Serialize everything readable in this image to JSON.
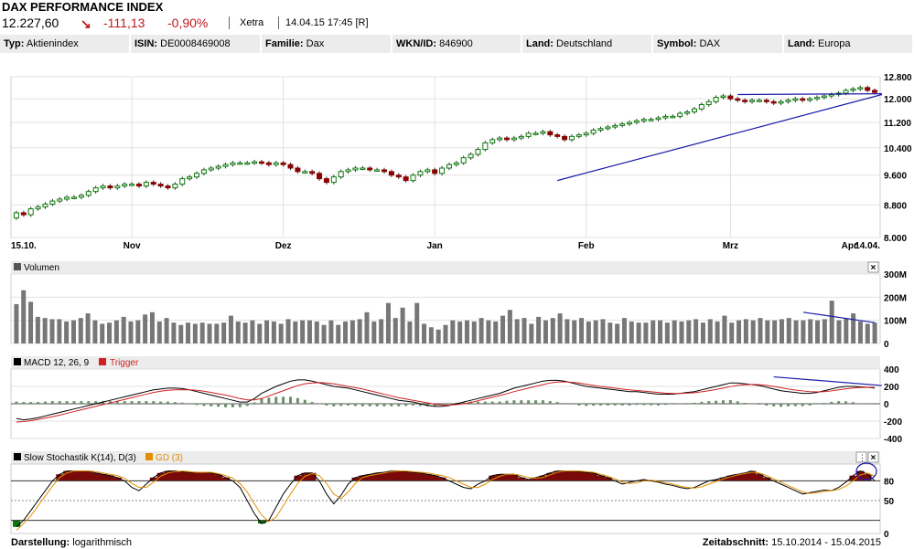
{
  "header": {
    "title": "DAX PERFORMANCE INDEX",
    "price": "12.227,60",
    "change": "-111,13",
    "change_pct": "-0,90%",
    "exchange": "Xetra",
    "timestamp": "14.04.15 17:45 [R]",
    "down_color": "#c0171a"
  },
  "info": [
    {
      "label": "Typ:",
      "value": "Aktienindex"
    },
    {
      "label": "ISIN:",
      "value": "DE0008469008"
    },
    {
      "label": "Familie:",
      "value": "Dax"
    },
    {
      "label": "WKN/ID:",
      "value": "846900"
    },
    {
      "label": "Land:",
      "value": "Deutschland"
    },
    {
      "label": "Symbol:",
      "value": "DAX"
    },
    {
      "label": "Land:",
      "value": "Europa"
    }
  ],
  "footer": {
    "left_label": "Darstellung:",
    "left_value": "logarithmisch",
    "right_label": "Zeitabschnitt:",
    "right_value": "15.10.2014 - 15.04.2015"
  },
  "chart_data": [
    {
      "type": "candlestick",
      "x_tick_labels": [
        "15.10.",
        "Nov",
        "Dez",
        "Jan",
        "Feb",
        "Mrz",
        "Apr",
        "14.04."
      ],
      "y_tick_labels": [
        "12.800",
        "12.000",
        "11.200",
        "10.400",
        "9.600",
        "8.800",
        "8.000"
      ],
      "y_ticks": [
        12800,
        12000,
        11200,
        10400,
        9600,
        8800,
        8000
      ],
      "ylim": [
        8000,
        12800
      ],
      "scale": "log",
      "grid": true,
      "up_color": "#0a7a0a",
      "down_color": "#8b0000",
      "close": [
        8600,
        8550,
        8700,
        8750,
        8820,
        8900,
        8950,
        9000,
        9000,
        9050,
        9150,
        9250,
        9300,
        9250,
        9300,
        9350,
        9350,
        9300,
        9400,
        9350,
        9300,
        9250,
        9350,
        9500,
        9550,
        9650,
        9750,
        9800,
        9850,
        9900,
        9950,
        9950,
        9950,
        9980,
        9950,
        9900,
        9950,
        9900,
        9800,
        9700,
        9700,
        9650,
        9500,
        9400,
        9550,
        9700,
        9750,
        9800,
        9800,
        9750,
        9750,
        9700,
        9600,
        9550,
        9450,
        9600,
        9700,
        9750,
        9650,
        9800,
        9900,
        9950,
        10100,
        10200,
        10350,
        10550,
        10650,
        10700,
        10650,
        10700,
        10750,
        10850,
        10850,
        10900,
        10800,
        10750,
        10650,
        10750,
        10800,
        10850,
        10950,
        11000,
        11050,
        11100,
        11150,
        11200,
        11250,
        11300,
        11300,
        11350,
        11400,
        11400,
        11500,
        11550,
        11650,
        11800,
        11900,
        12050,
        12100,
        12000,
        11950,
        11900,
        11950,
        11950,
        11900,
        11850,
        11900,
        11950,
        12000,
        11950,
        12000,
        12050,
        12100,
        12150,
        12200,
        12300,
        12350,
        12400,
        12300,
        12227
      ],
      "trendlines": [
        {
          "from": [
            75,
            9450
          ],
          "to": [
            120,
            12150
          ]
        },
        {
          "from": [
            100,
            12150
          ],
          "to": [
            120,
            12180
          ]
        }
      ]
    },
    {
      "type": "bar",
      "title": "Volumen",
      "y_tick_labels": [
        "300M",
        "200M",
        "100M",
        "0"
      ],
      "y_ticks": [
        300,
        200,
        100,
        0
      ],
      "ylim": [
        0,
        300
      ],
      "units": "M",
      "values": [
        170,
        230,
        180,
        115,
        110,
        105,
        105,
        95,
        100,
        110,
        130,
        100,
        85,
        90,
        100,
        115,
        95,
        100,
        125,
        135,
        95,
        110,
        90,
        80,
        90,
        85,
        90,
        85,
        85,
        90,
        120,
        95,
        90,
        100,
        85,
        100,
        95,
        85,
        105,
        95,
        100,
        100,
        95,
        80,
        100,
        80,
        95,
        100,
        105,
        135,
        95,
        105,
        175,
        110,
        155,
        95,
        175,
        85,
        70,
        60,
        80,
        100,
        95,
        100,
        95,
        110,
        100,
        95,
        120,
        145,
        105,
        110,
        85,
        115,
        100,
        110,
        130,
        105,
        100,
        110,
        95,
        100,
        105,
        90,
        85,
        110,
        95,
        90,
        90,
        100,
        100,
        90,
        100,
        95,
        100,
        105,
        90,
        105,
        95,
        120,
        90,
        100,
        105,
        100,
        110,
        100,
        100,
        105,
        110,
        100,
        100,
        105,
        100,
        105,
        185,
        100,
        110,
        130,
        95,
        85,
        90
      ],
      "trendline": {
        "from": [
          110,
          135
        ],
        "to": [
          120,
          90
        ]
      }
    },
    {
      "type": "line",
      "title": "MACD 12, 26, 9",
      "legend": [
        "MACD 12, 26, 9",
        "Trigger"
      ],
      "y_tick_labels": [
        "400",
        "200",
        "0",
        "-200",
        "-400"
      ],
      "y_ticks": [
        400,
        200,
        0,
        -200,
        -400
      ],
      "ylim": [
        -400,
        400
      ],
      "series": [
        {
          "name": "MACD 12, 26, 9",
          "color": "#000000",
          "values": [
            -170,
            -185,
            -175,
            -160,
            -140,
            -120,
            -100,
            -80,
            -60,
            -40,
            -20,
            0,
            20,
            40,
            60,
            80,
            100,
            120,
            140,
            160,
            170,
            180,
            180,
            175,
            160,
            140,
            120,
            100,
            80,
            60,
            40,
            20,
            20,
            60,
            120,
            160,
            200,
            230,
            260,
            275,
            275,
            260,
            240,
            220,
            200,
            190,
            180,
            160,
            140,
            120,
            100,
            80,
            60,
            40,
            30,
            20,
            0,
            -20,
            -30,
            -30,
            -20,
            0,
            20,
            40,
            60,
            80,
            100,
            120,
            150,
            180,
            200,
            220,
            240,
            260,
            270,
            270,
            260,
            240,
            220,
            200,
            190,
            180,
            170,
            160,
            150,
            140,
            140,
            130,
            120,
            110,
            110,
            110,
            120,
            130,
            140,
            160,
            180,
            200,
            220,
            240,
            240,
            230,
            220,
            210,
            190,
            170,
            150,
            140,
            130,
            120,
            120,
            130,
            150,
            170,
            190,
            200,
            200,
            195,
            190,
            180
          ]
        },
        {
          "name": "Trigger",
          "color": "#d02020",
          "values": [
            -210,
            -205,
            -195,
            -180,
            -165,
            -150,
            -130,
            -110,
            -90,
            -70,
            -50,
            -30,
            -10,
            10,
            30,
            50,
            70,
            90,
            110,
            130,
            145,
            155,
            160,
            162,
            160,
            155,
            145,
            130,
            115,
            100,
            80,
            60,
            45,
            45,
            60,
            90,
            120,
            150,
            180,
            210,
            230,
            240,
            245,
            240,
            230,
            215,
            200,
            185,
            170,
            150,
            130,
            110,
            90,
            70,
            55,
            40,
            25,
            10,
            -5,
            -15,
            -15,
            -10,
            0,
            15,
            35,
            55,
            75,
            95,
            115,
            140,
            160,
            180,
            200,
            220,
            240,
            250,
            252,
            248,
            240,
            225,
            212,
            200,
            190,
            180,
            170,
            160,
            153,
            146,
            138,
            130,
            123,
            118,
            118,
            122,
            128,
            138,
            150,
            165,
            180,
            198,
            212,
            220,
            222,
            220,
            212,
            200,
            185,
            170,
            158,
            148,
            140,
            137,
            140,
            148,
            160,
            172,
            182,
            188,
            190,
            188
          ]
        }
      ],
      "histogram": [
        25,
        20,
        20,
        20,
        25,
        30,
        30,
        30,
        30,
        30,
        30,
        30,
        30,
        30,
        30,
        30,
        30,
        30,
        30,
        30,
        25,
        25,
        20,
        13,
        0,
        -15,
        -25,
        -30,
        -35,
        -40,
        -40,
        -40,
        -25,
        15,
        60,
        70,
        80,
        80,
        80,
        65,
        45,
        20,
        -5,
        -20,
        -30,
        -25,
        -20,
        -25,
        -30,
        -30,
        -30,
        -30,
        -30,
        -30,
        -25,
        -20,
        -25,
        -30,
        -25,
        -15,
        -5,
        10,
        20,
        25,
        25,
        25,
        25,
        25,
        35,
        40,
        40,
        40,
        40,
        40,
        30,
        20,
        8,
        -8,
        -20,
        -25,
        -22,
        -20,
        -20,
        -20,
        -20,
        -20,
        -13,
        -16,
        -18,
        -20,
        -13,
        -8,
        2,
        8,
        12,
        22,
        30,
        35,
        40,
        42,
        28,
        10,
        -2,
        -10,
        -22,
        -30,
        -35,
        -30,
        -28,
        -28,
        -20,
        -7,
        10,
        22,
        30,
        28,
        18,
        7,
        0,
        -8
      ],
      "trendline": {
        "from": [
          105,
          310
        ],
        "to": [
          120,
          210
        ]
      }
    },
    {
      "type": "line",
      "title": "Slow Stochastik K(14), D(3)",
      "legend": [
        "Slow Stochastik K(14), D(3)",
        "GD (3)"
      ],
      "y_tick_labels": [
        "80",
        "50",
        "0"
      ],
      "y_ticks": [
        80,
        50,
        0
      ],
      "ylim": [
        0,
        100
      ],
      "series": [
        {
          "name": "Slow Stochastik K(14), D(3)",
          "color": "#000000",
          "values": [
            10,
            20,
            35,
            50,
            65,
            80,
            90,
            95,
            95,
            95,
            95,
            92,
            90,
            88,
            85,
            80,
            70,
            65,
            75,
            85,
            92,
            95,
            95,
            94,
            93,
            93,
            93,
            92,
            90,
            85,
            80,
            70,
            50,
            30,
            15,
            20,
            40,
            60,
            75,
            88,
            92,
            92,
            80,
            60,
            45,
            58,
            75,
            85,
            88,
            90,
            92,
            93,
            95,
            95,
            94,
            93,
            92,
            90,
            88,
            85,
            80,
            75,
            70,
            68,
            75,
            80,
            88,
            90,
            90,
            90,
            85,
            82,
            85,
            88,
            92,
            95,
            95,
            95,
            94,
            93,
            92,
            88,
            85,
            80,
            75,
            78,
            80,
            82,
            80,
            78,
            75,
            73,
            70,
            68,
            70,
            75,
            80,
            82,
            85,
            88,
            90,
            92,
            95,
            90,
            85,
            80,
            75,
            70,
            65,
            60,
            62,
            64,
            66,
            65,
            70,
            78,
            88,
            95,
            90,
            80
          ]
        },
        {
          "name": "GD (3)",
          "color": "#e09000",
          "values": [
            5,
            15,
            27,
            42,
            57,
            72,
            85,
            92,
            95,
            95,
            95,
            94,
            92,
            90,
            88,
            84,
            76,
            70,
            70,
            78,
            87,
            92,
            94,
            95,
            94,
            93,
            93,
            93,
            91,
            88,
            84,
            76,
            63,
            45,
            28,
            18,
            25,
            42,
            60,
            76,
            87,
            91,
            88,
            76,
            60,
            53,
            63,
            76,
            85,
            88,
            90,
            92,
            94,
            95,
            95,
            94,
            93,
            92,
            90,
            88,
            85,
            80,
            75,
            70,
            70,
            75,
            82,
            87,
            90,
            90,
            88,
            85,
            84,
            85,
            89,
            93,
            95,
            95,
            95,
            94,
            93,
            90,
            87,
            83,
            78,
            76,
            77,
            80,
            81,
            79,
            77,
            75,
            72,
            70,
            69,
            71,
            75,
            79,
            83,
            86,
            89,
            91,
            93,
            92,
            88,
            83,
            78,
            73,
            68,
            63,
            61,
            62,
            64,
            65,
            67,
            72,
            80,
            89,
            92,
            87
          ]
        }
      ]
    }
  ]
}
